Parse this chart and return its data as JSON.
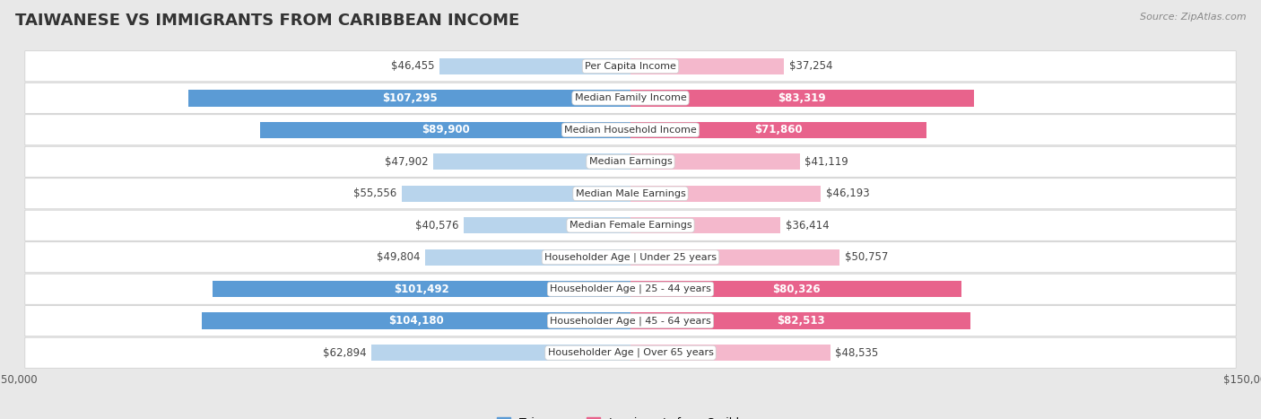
{
  "title": "TAIWANESE VS IMMIGRANTS FROM CARIBBEAN INCOME",
  "source": "Source: ZipAtlas.com",
  "categories": [
    "Per Capita Income",
    "Median Family Income",
    "Median Household Income",
    "Median Earnings",
    "Median Male Earnings",
    "Median Female Earnings",
    "Householder Age | Under 25 years",
    "Householder Age | 25 - 44 years",
    "Householder Age | 45 - 64 years",
    "Householder Age | Over 65 years"
  ],
  "taiwanese_values": [
    46455,
    107295,
    89900,
    47902,
    55556,
    40576,
    49804,
    101492,
    104180,
    62894
  ],
  "caribbean_values": [
    37254,
    83319,
    71860,
    41119,
    46193,
    36414,
    50757,
    80326,
    82513,
    48535
  ],
  "tw_color_light": "#b8d4ec",
  "tw_color_dark": "#5b9bd5",
  "car_color_light": "#f4b8cc",
  "car_color_dark": "#e8638c",
  "tw_threshold": 70000,
  "car_threshold": 70000,
  "max_value": 150000,
  "bar_height": 0.52,
  "row_bg_color": "#efefef",
  "page_bg_color": "#e8e8e8",
  "label_fontsize": 8.5,
  "title_fontsize": 13,
  "source_fontsize": 8,
  "legend_fontsize": 9,
  "cat_label_fontsize": 8.0
}
